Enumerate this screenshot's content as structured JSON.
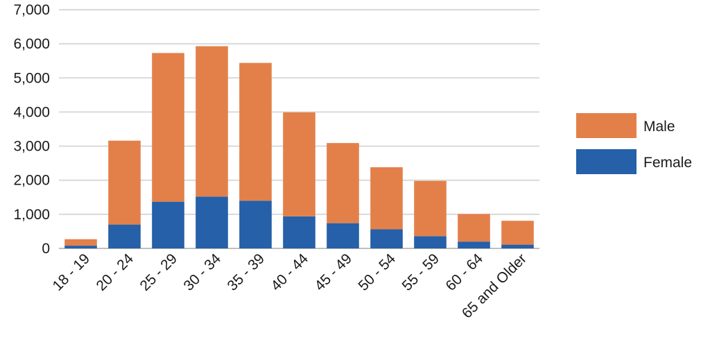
{
  "chart_data": {
    "type": "bar",
    "stacked": true,
    "title": "",
    "xlabel": "",
    "ylabel": "",
    "categories": [
      "18 - 19",
      "20 - 24",
      "25 - 29",
      "30 - 34",
      "35 - 39",
      "40 - 44",
      "45 - 49",
      "50 - 54",
      "55 - 59",
      "60 - 64",
      "65 and Older"
    ],
    "series": [
      {
        "name": "Female",
        "color": "#2560A8",
        "values": [
          80,
          700,
          1370,
          1520,
          1400,
          940,
          740,
          560,
          360,
          200,
          110
        ]
      },
      {
        "name": "Male",
        "color": "#E3804A",
        "values": [
          190,
          2460,
          4360,
          4410,
          4040,
          3050,
          2350,
          1820,
          1620,
          810,
          700
        ]
      }
    ],
    "ylim": [
      0,
      7000
    ],
    "yticks": [
      0,
      1000,
      2000,
      3000,
      4000,
      5000,
      6000,
      7000
    ],
    "ytick_labels": [
      "0",
      "1,000",
      "2,000",
      "3,000",
      "4,000",
      "5,000",
      "6,000",
      "7,000"
    ],
    "grid": true,
    "legend": {
      "position": "right",
      "entries": [
        {
          "label": "Male",
          "color": "#E3804A"
        },
        {
          "label": "Female",
          "color": "#2560A8"
        }
      ]
    }
  }
}
